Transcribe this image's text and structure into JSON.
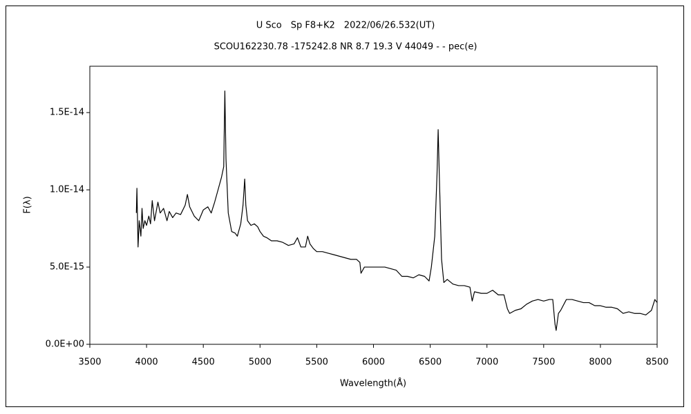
{
  "chart_data": {
    "type": "line",
    "title": "U Sco　Sp F8+K2　2022/06/26.532(UT)",
    "subtitle": "SCOU162230.78 -175242.8 NR 8.7 19.3 V 44049 - - pec(e)",
    "x_label": "Wavelength(Å)",
    "y_label": "F(λ)",
    "xlim": [
      3500,
      8500
    ],
    "xticks": [
      3500,
      4000,
      4500,
      5000,
      5500,
      6000,
      6500,
      7000,
      7500,
      8000,
      8500
    ],
    "ylim": [
      0,
      1.8e-14
    ],
    "yticks": [
      {
        "value": 0,
        "label": "0.0E+00"
      },
      {
        "value": 5e-15,
        "label": "5.0E-15"
      },
      {
        "value": 1e-14,
        "label": "1.0E-14"
      },
      {
        "value": 1.5e-14,
        "label": "1.5E-14"
      }
    ],
    "color": "#000000",
    "x": [
      3910,
      3915,
      3925,
      3935,
      3950,
      3960,
      3970,
      3985,
      4000,
      4020,
      4035,
      4050,
      4070,
      4100,
      4120,
      4150,
      4180,
      4200,
      4230,
      4260,
      4300,
      4340,
      4360,
      4380,
      4420,
      4460,
      4500,
      4540,
      4570,
      4600,
      4630,
      4660,
      4680,
      4690,
      4700,
      4720,
      4750,
      4780,
      4800,
      4830,
      4850,
      4865,
      4875,
      4890,
      4920,
      4950,
      4980,
      5000,
      5030,
      5060,
      5100,
      5150,
      5200,
      5250,
      5300,
      5330,
      5360,
      5400,
      5420,
      5440,
      5470,
      5500,
      5550,
      5600,
      5650,
      5700,
      5750,
      5800,
      5850,
      5880,
      5890,
      5920,
      5950,
      6000,
      6050,
      6100,
      6150,
      6200,
      6250,
      6300,
      6350,
      6400,
      6450,
      6490,
      6510,
      6540,
      6560,
      6570,
      6580,
      6600,
      6620,
      6650,
      6700,
      6750,
      6800,
      6850,
      6870,
      6890,
      6950,
      7000,
      7050,
      7100,
      7150,
      7180,
      7200,
      7250,
      7300,
      7350,
      7400,
      7450,
      7500,
      7550,
      7580,
      7600,
      7610,
      7630,
      7650,
      7700,
      7750,
      7800,
      7850,
      7900,
      7950,
      8000,
      8050,
      8100,
      8150,
      8200,
      8250,
      8300,
      8350,
      8400,
      8450,
      8480,
      8500
    ],
    "values": [
      8.5e-15,
      1.01e-14,
      6.3e-15,
      8e-15,
      7e-15,
      8.8e-15,
      7.5e-15,
      8e-15,
      7.7e-15,
      8.3e-15,
      7.8e-15,
      9.3e-15,
      8e-15,
      9.2e-15,
      8.5e-15,
      8.8e-15,
      8e-15,
      8.6e-15,
      8.2e-15,
      8.5e-15,
      8.4e-15,
      9e-15,
      9.7e-15,
      8.9e-15,
      8.3e-15,
      8e-15,
      8.7e-15,
      8.9e-15,
      8.5e-15,
      9.2e-15,
      1e-14,
      1.08e-14,
      1.15e-14,
      1.64e-14,
      1.2e-14,
      8.5e-15,
      7.3e-15,
      7.2e-15,
      7e-15,
      7.8e-15,
      9e-15,
      1.07e-14,
      9e-15,
      8e-15,
      7.7e-15,
      7.8e-15,
      7.6e-15,
      7.3e-15,
      7e-15,
      6.9e-15,
      6.7e-15,
      6.7e-15,
      6.6e-15,
      6.4e-15,
      6.5e-15,
      6.9e-15,
      6.3e-15,
      6.3e-15,
      7e-15,
      6.5e-15,
      6.2e-15,
      6e-15,
      6e-15,
      5.9e-15,
      5.8e-15,
      5.7e-15,
      5.6e-15,
      5.5e-15,
      5.5e-15,
      5.3e-15,
      4.6e-15,
      5e-15,
      5e-15,
      5e-15,
      5e-15,
      5e-15,
      4.9e-15,
      4.8e-15,
      4.4e-15,
      4.4e-15,
      4.3e-15,
      4.5e-15,
      4.4e-15,
      4.1e-15,
      5e-15,
      7e-15,
      1.1e-14,
      1.39e-14,
      1.1e-14,
      5.5e-15,
      4e-15,
      4.2e-15,
      3.9e-15,
      3.8e-15,
      3.8e-15,
      3.7e-15,
      2.8e-15,
      3.4e-15,
      3.3e-15,
      3.3e-15,
      3.5e-15,
      3.2e-15,
      3.2e-15,
      2.3e-15,
      2e-15,
      2.2e-15,
      2.3e-15,
      2.6e-15,
      2.8e-15,
      2.9e-15,
      2.8e-15,
      2.9e-15,
      2.9e-15,
      1.3e-15,
      9e-16,
      2e-15,
      2.2e-15,
      2.9e-15,
      2.9e-15,
      2.8e-15,
      2.7e-15,
      2.7e-15,
      2.5e-15,
      2.5e-15,
      2.4e-15,
      2.4e-15,
      2.3e-15,
      2e-15,
      2.1e-15,
      2e-15,
      2e-15,
      1.9e-15,
      2.2e-15,
      2.9e-15,
      2.7e-15
    ]
  }
}
